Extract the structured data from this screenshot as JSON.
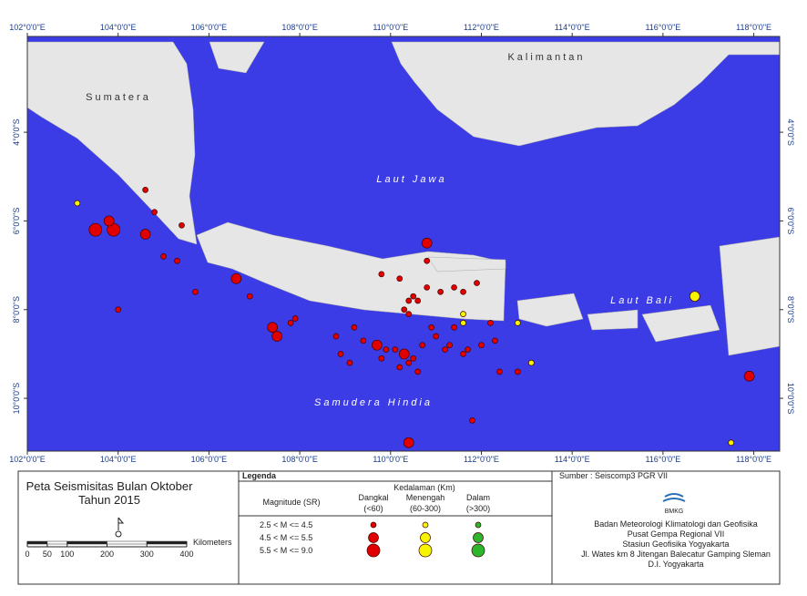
{
  "map": {
    "lon_range": [
      102,
      118.57
    ],
    "lat_range": [
      -1.84,
      -11.19
    ],
    "lon_ticks": [
      {
        "value": 102,
        "label": "102°0'0\"E"
      },
      {
        "value": 104,
        "label": "104°0'0\"E"
      },
      {
        "value": 106,
        "label": "106°0'0\"E"
      },
      {
        "value": 108,
        "label": "108°0'0\"E"
      },
      {
        "value": 110,
        "label": "110°0'0\"E"
      },
      {
        "value": 112,
        "label": "112°0'0\"E"
      },
      {
        "value": 114,
        "label": "114°0'0\"E"
      },
      {
        "value": 116,
        "label": "116°0'0\"E"
      },
      {
        "value": 118,
        "label": "118°0'0\"E"
      }
    ],
    "lat_ticks": [
      {
        "value": -4,
        "label": "4°0'0\"S"
      },
      {
        "value": -6,
        "label": "6°0'0\"S"
      },
      {
        "value": -8,
        "label": "8°0'0\"S"
      },
      {
        "value": -10,
        "label": "10°0'0\"S"
      }
    ],
    "places": {
      "sumatera": "Sumatera",
      "kalimantan": "Kalimantan",
      "laut_jawa": "Laut Jawa",
      "laut_bali": "Laut Bali",
      "samudera": "Samudera Hindia"
    },
    "events": [
      {
        "lon": 103.5,
        "lat": -6.2,
        "mag": 2,
        "depth": 0
      },
      {
        "lon": 103.9,
        "lat": -6.2,
        "mag": 2,
        "depth": 0
      },
      {
        "lon": 103.8,
        "lat": -6.0,
        "mag": 1,
        "depth": 0
      },
      {
        "lon": 104.6,
        "lat": -6.3,
        "mag": 1,
        "depth": 0
      },
      {
        "lon": 104.6,
        "lat": -5.3,
        "mag": 0,
        "depth": 0
      },
      {
        "lon": 104.8,
        "lat": -5.8,
        "mag": 0,
        "depth": 0
      },
      {
        "lon": 105.4,
        "lat": -6.1,
        "mag": 0,
        "depth": 0
      },
      {
        "lon": 105.0,
        "lat": -6.8,
        "mag": 0,
        "depth": 0
      },
      {
        "lon": 105.3,
        "lat": -6.9,
        "mag": 0,
        "depth": 0
      },
      {
        "lon": 105.7,
        "lat": -7.6,
        "mag": 0,
        "depth": 0
      },
      {
        "lon": 104.0,
        "lat": -8.0,
        "mag": 0,
        "depth": 0
      },
      {
        "lon": 106.6,
        "lat": -7.3,
        "mag": 1,
        "depth": 0
      },
      {
        "lon": 106.9,
        "lat": -7.7,
        "mag": 0,
        "depth": 0
      },
      {
        "lon": 107.4,
        "lat": -8.4,
        "mag": 1,
        "depth": 0
      },
      {
        "lon": 107.5,
        "lat": -8.6,
        "mag": 1,
        "depth": 0
      },
      {
        "lon": 107.8,
        "lat": -8.3,
        "mag": 0,
        "depth": 0
      },
      {
        "lon": 107.9,
        "lat": -8.2,
        "mag": 0,
        "depth": 0
      },
      {
        "lon": 110.8,
        "lat": -6.5,
        "mag": 1,
        "depth": 0
      },
      {
        "lon": 110.4,
        "lat": -11.0,
        "mag": 1,
        "depth": 0
      },
      {
        "lon": 117.9,
        "lat": -9.5,
        "mag": 1,
        "depth": 0
      },
      {
        "lon": 109.7,
        "lat": -8.8,
        "mag": 1,
        "depth": 0
      },
      {
        "lon": 110.3,
        "lat": -9.0,
        "mag": 1,
        "depth": 0
      },
      {
        "lon": 108.8,
        "lat": -8.6,
        "mag": 0,
        "depth": 0
      },
      {
        "lon": 108.9,
        "lat": -9.0,
        "mag": 0,
        "depth": 0
      },
      {
        "lon": 109.1,
        "lat": -9.2,
        "mag": 0,
        "depth": 0
      },
      {
        "lon": 109.2,
        "lat": -8.4,
        "mag": 0,
        "depth": 0
      },
      {
        "lon": 109.4,
        "lat": -8.7,
        "mag": 0,
        "depth": 0
      },
      {
        "lon": 109.8,
        "lat": -9.1,
        "mag": 0,
        "depth": 0
      },
      {
        "lon": 109.9,
        "lat": -8.9,
        "mag": 0,
        "depth": 0
      },
      {
        "lon": 110.1,
        "lat": -8.9,
        "mag": 0,
        "depth": 0
      },
      {
        "lon": 110.2,
        "lat": -9.3,
        "mag": 0,
        "depth": 0
      },
      {
        "lon": 110.4,
        "lat": -9.2,
        "mag": 0,
        "depth": 0
      },
      {
        "lon": 110.5,
        "lat": -9.1,
        "mag": 0,
        "depth": 0
      },
      {
        "lon": 110.6,
        "lat": -9.4,
        "mag": 0,
        "depth": 0
      },
      {
        "lon": 110.7,
        "lat": -8.8,
        "mag": 0,
        "depth": 0
      },
      {
        "lon": 110.9,
        "lat": -8.4,
        "mag": 0,
        "depth": 0
      },
      {
        "lon": 111.0,
        "lat": -8.6,
        "mag": 0,
        "depth": 0
      },
      {
        "lon": 111.2,
        "lat": -8.9,
        "mag": 0,
        "depth": 0
      },
      {
        "lon": 111.3,
        "lat": -8.8,
        "mag": 0,
        "depth": 0
      },
      {
        "lon": 111.6,
        "lat": -9.0,
        "mag": 0,
        "depth": 0
      },
      {
        "lon": 111.7,
        "lat": -8.9,
        "mag": 0,
        "depth": 0
      },
      {
        "lon": 112.0,
        "lat": -8.8,
        "mag": 0,
        "depth": 0
      },
      {
        "lon": 112.3,
        "lat": -8.7,
        "mag": 0,
        "depth": 0
      },
      {
        "lon": 112.4,
        "lat": -9.4,
        "mag": 0,
        "depth": 0
      },
      {
        "lon": 112.8,
        "lat": -9.4,
        "mag": 0,
        "depth": 0
      },
      {
        "lon": 111.8,
        "lat": -10.5,
        "mag": 0,
        "depth": 0
      },
      {
        "lon": 111.4,
        "lat": -8.4,
        "mag": 0,
        "depth": 0
      },
      {
        "lon": 109.8,
        "lat": -7.2,
        "mag": 0,
        "depth": 0
      },
      {
        "lon": 110.2,
        "lat": -7.3,
        "mag": 0,
        "depth": 0
      },
      {
        "lon": 110.4,
        "lat": -7.8,
        "mag": 0,
        "depth": 0
      },
      {
        "lon": 110.5,
        "lat": -7.7,
        "mag": 0,
        "depth": 0
      },
      {
        "lon": 110.6,
        "lat": -7.8,
        "mag": 0,
        "depth": 0
      },
      {
        "lon": 110.3,
        "lat": -8.0,
        "mag": 0,
        "depth": 0
      },
      {
        "lon": 110.4,
        "lat": -8.1,
        "mag": 0,
        "depth": 0
      },
      {
        "lon": 110.8,
        "lat": -7.5,
        "mag": 0,
        "depth": 0
      },
      {
        "lon": 111.1,
        "lat": -7.6,
        "mag": 0,
        "depth": 0
      },
      {
        "lon": 111.4,
        "lat": -7.5,
        "mag": 0,
        "depth": 0
      },
      {
        "lon": 111.6,
        "lat": -7.6,
        "mag": 0,
        "depth": 0
      },
      {
        "lon": 111.9,
        "lat": -7.4,
        "mag": 0,
        "depth": 0
      },
      {
        "lon": 112.2,
        "lat": -8.3,
        "mag": 0,
        "depth": 0
      },
      {
        "lon": 110.8,
        "lat": -6.9,
        "mag": 0,
        "depth": 0
      },
      {
        "lon": 103.1,
        "lat": -5.6,
        "mag": 0,
        "depth": 1
      },
      {
        "lon": 116.7,
        "lat": -7.7,
        "mag": 1,
        "depth": 1
      },
      {
        "lon": 117.5,
        "lat": -11.0,
        "mag": 0,
        "depth": 1
      },
      {
        "lon": 111.6,
        "lat": -8.1,
        "mag": 0,
        "depth": 1
      },
      {
        "lon": 111.6,
        "lat": -8.3,
        "mag": 0,
        "depth": 1
      },
      {
        "lon": 113.1,
        "lat": -9.2,
        "mag": 0,
        "depth": 1
      },
      {
        "lon": 112.8,
        "lat": -8.3,
        "mag": 0,
        "depth": 1
      }
    ]
  },
  "title": {
    "line1": "Peta Seismisitas Bulan Oktober",
    "line2": "Tahun 2015"
  },
  "scale": {
    "ticks": [
      0,
      50,
      100,
      200,
      300,
      400
    ],
    "unit": "Kilometers"
  },
  "legend": {
    "title": "Legenda",
    "depth_title": "Kedalaman (Km)",
    "magnitude_title": "Magnitude (SR)",
    "depth_classes": [
      {
        "name": "Dangkal",
        "range": "(<60)",
        "color": "#e00000"
      },
      {
        "name": "Menengah",
        "range": "(60-300)",
        "color": "#f5f500"
      },
      {
        "name": "Dalam",
        "range": "(>300)",
        "color": "#2db52d"
      }
    ],
    "magnitude_classes": [
      "2.5 < M <= 4.5",
      "4.5 < M <= 5.5",
      "5.5 < M <= 9.0"
    ]
  },
  "source": {
    "text": "Sumber :  Seiscomp3 PGR VII",
    "logo": "BMKG",
    "lines": [
      "Badan Meteorologi Klimatologi dan Geofisika",
      "Pusat Gempa Regional VII",
      "Stasiun Geofisika Yogyakarta",
      "Jl. Wates km 8 Jitengan Balecatur Gamping Sleman",
      "D.I. Yogyakarta"
    ]
  }
}
